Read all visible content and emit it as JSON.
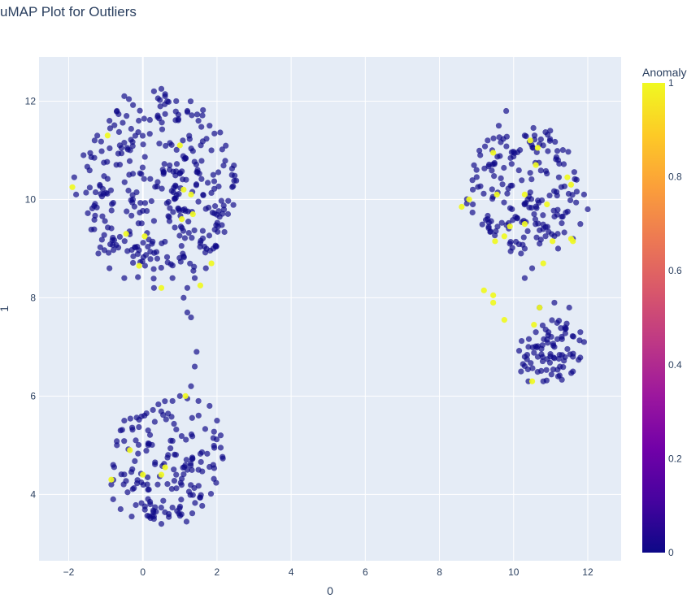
{
  "chart_data": {
    "type": "scatter",
    "title": "uMAP Plot for Outliers",
    "xlabel": "0",
    "ylabel": "1",
    "xlim": [
      -2.8,
      12.9
    ],
    "ylim": [
      2.65,
      12.9
    ],
    "xticks": [
      -2,
      0,
      2,
      4,
      6,
      8,
      10,
      12
    ],
    "xtick_labels": [
      "−2",
      "0",
      "2",
      "4",
      "6",
      "8",
      "10",
      "12"
    ],
    "yticks": [
      4,
      6,
      8,
      10,
      12
    ],
    "ytick_labels": [
      "4",
      "6",
      "8",
      "10",
      "12"
    ],
    "grid": true,
    "colorbar": {
      "title": "Anomaly",
      "range": [
        0,
        1
      ],
      "ticks": [
        0,
        0.2,
        0.4,
        0.6,
        0.8,
        1
      ],
      "tick_labels": [
        "0",
        "0.2",
        "0.4",
        "0.6",
        "0.8",
        "1"
      ],
      "colorscale": [
        "#0d0887",
        "#46039f",
        "#7201a8",
        "#9c179e",
        "#bd3786",
        "#d8576b",
        "#ed7953",
        "#fb9f3a",
        "#fdca26",
        "#f0f921"
      ]
    },
    "colors": {
      "plot_bg": "#e5ecf6",
      "grid": "#ffffff",
      "text": "#2a3f5f",
      "normal_point": "#0d0887",
      "anomaly_point": "#f0f921"
    },
    "clusters": [
      {
        "name": "upper-left",
        "cx": 0.45,
        "cy": 10.25,
        "rx": 2.2,
        "ry": 1.95,
        "n": 330
      },
      {
        "name": "lower-left",
        "cx": 0.65,
        "cy": 4.65,
        "rx": 1.55,
        "ry": 1.35,
        "n": 150
      },
      {
        "name": "upper-right",
        "cx": 10.25,
        "cy": 10.25,
        "rx": 1.6,
        "ry": 1.35,
        "n": 170
      },
      {
        "name": "lower-right",
        "cx": 11.0,
        "cy": 6.95,
        "rx": 0.9,
        "ry": 0.7,
        "n": 75
      }
    ],
    "points_normal": [
      [
        -0.5,
        12.1
      ],
      [
        -0.7,
        11.8
      ],
      [
        -0.9,
        11.6
      ],
      [
        -1.3,
        11.2
      ],
      [
        -1.6,
        10.9
      ],
      [
        -1.85,
        10.45
      ],
      [
        -1.8,
        10.1
      ],
      [
        0.3,
        12.2
      ],
      [
        0.5,
        12.25
      ],
      [
        0.6,
        12.1
      ],
      [
        0.9,
        12.0
      ],
      [
        1.2,
        11.8
      ],
      [
        1.5,
        11.6
      ],
      [
        1.8,
        11.5
      ],
      [
        1.85,
        11.0
      ],
      [
        1.9,
        10.5
      ],
      [
        1.9,
        9.0
      ],
      [
        1.7,
        8.6
      ],
      [
        1.4,
        8.4
      ],
      [
        1.2,
        8.2
      ],
      [
        1.1,
        8.0
      ],
      [
        1.2,
        7.7
      ],
      [
        1.3,
        7.6
      ],
      [
        0.8,
        8.4
      ],
      [
        0.3,
        8.2
      ],
      [
        -0.5,
        8.4
      ],
      [
        -0.9,
        8.6
      ],
      [
        -1.2,
        8.9
      ],
      [
        1.45,
        6.9
      ],
      [
        1.4,
        6.6
      ],
      [
        1.3,
        6.2
      ],
      [
        0.8,
        5.9
      ],
      [
        1.0,
        6.0
      ],
      [
        1.2,
        5.95
      ],
      [
        1.5,
        5.9
      ],
      [
        1.8,
        5.8
      ],
      [
        2.0,
        5.5
      ],
      [
        2.1,
        5.2
      ],
      [
        2.1,
        4.95
      ],
      [
        1.9,
        4.6
      ],
      [
        1.5,
        4.5
      ],
      [
        1.2,
        4.5
      ],
      [
        0.9,
        4.4
      ],
      [
        0.4,
        4.2
      ],
      [
        0.2,
        3.8
      ],
      [
        0.7,
        3.6
      ],
      [
        0.5,
        3.4
      ],
      [
        0.3,
        3.5
      ],
      [
        -0.3,
        3.55
      ],
      [
        -0.6,
        3.7
      ],
      [
        -0.8,
        3.9
      ],
      [
        -0.85,
        4.2
      ],
      [
        -0.8,
        4.6
      ],
      [
        -0.7,
        5.0
      ],
      [
        -0.6,
        5.3
      ],
      [
        -0.5,
        5.5
      ],
      [
        9.8,
        11.8
      ],
      [
        9.6,
        11.5
      ],
      [
        9.3,
        11.2
      ],
      [
        9.1,
        10.9
      ],
      [
        9.0,
        10.6
      ],
      [
        8.9,
        10.2
      ],
      [
        8.9,
        9.9
      ],
      [
        9.3,
        9.6
      ],
      [
        9.9,
        9.1
      ],
      [
        10.3,
        9.0
      ],
      [
        10.7,
        9.1
      ],
      [
        11.2,
        9.0
      ],
      [
        11.6,
        9.2
      ],
      [
        11.8,
        9.5
      ],
      [
        12.0,
        9.8
      ],
      [
        11.9,
        10.1
      ],
      [
        11.7,
        10.4
      ],
      [
        11.2,
        10.8
      ],
      [
        10.8,
        11.1
      ],
      [
        10.3,
        11.3
      ],
      [
        10.2,
        8.9
      ],
      [
        10.5,
        8.6
      ],
      [
        10.3,
        8.4
      ],
      [
        10.7,
        7.8
      ],
      [
        11.1,
        7.9
      ],
      [
        11.5,
        7.8
      ],
      [
        11.8,
        7.3
      ],
      [
        11.9,
        7.1
      ],
      [
        11.6,
        6.8
      ],
      [
        11.6,
        6.5
      ],
      [
        11.2,
        6.4
      ],
      [
        10.8,
        6.3
      ],
      [
        10.4,
        6.3
      ],
      [
        10.2,
        6.5
      ],
      [
        10.3,
        6.8
      ],
      [
        10.4,
        7.0
      ],
      [
        10.6,
        7.3
      ]
    ],
    "points_anomaly": [
      [
        -1.9,
        10.25
      ],
      [
        -0.95,
        11.3
      ],
      [
        -0.45,
        9.3
      ],
      [
        0.05,
        9.25
      ],
      [
        -0.1,
        8.65
      ],
      [
        0.5,
        8.2
      ],
      [
        1.1,
        10.2
      ],
      [
        1.3,
        10.1
      ],
      [
        1.05,
        9.6
      ],
      [
        1.55,
        8.25
      ],
      [
        1.85,
        8.7
      ],
      [
        1.35,
        9.7
      ],
      [
        1.0,
        11.1
      ],
      [
        -0.85,
        4.3
      ],
      [
        -0.35,
        4.9
      ],
      [
        0.0,
        4.4
      ],
      [
        0.5,
        4.4
      ],
      [
        1.15,
        6.0
      ],
      [
        0.6,
        4.55
      ],
      [
        8.6,
        9.85
      ],
      [
        8.8,
        10.0
      ],
      [
        9.45,
        10.95
      ],
      [
        9.55,
        10.1
      ],
      [
        9.9,
        9.45
      ],
      [
        10.3,
        10.1
      ],
      [
        10.45,
        11.2
      ],
      [
        10.65,
        11.05
      ],
      [
        10.9,
        9.9
      ],
      [
        11.05,
        9.15
      ],
      [
        11.55,
        9.2
      ],
      [
        11.55,
        10.3
      ],
      [
        11.45,
        10.45
      ],
      [
        9.5,
        9.15
      ],
      [
        9.75,
        9.25
      ],
      [
        10.3,
        9.5
      ],
      [
        10.6,
        10.7
      ],
      [
        11.6,
        9.15
      ],
      [
        10.8,
        8.7
      ],
      [
        9.2,
        8.15
      ],
      [
        9.45,
        8.05
      ],
      [
        9.45,
        7.9
      ],
      [
        9.75,
        7.55
      ],
      [
        10.55,
        7.45
      ],
      [
        10.7,
        7.8
      ],
      [
        10.5,
        6.3
      ]
    ]
  }
}
